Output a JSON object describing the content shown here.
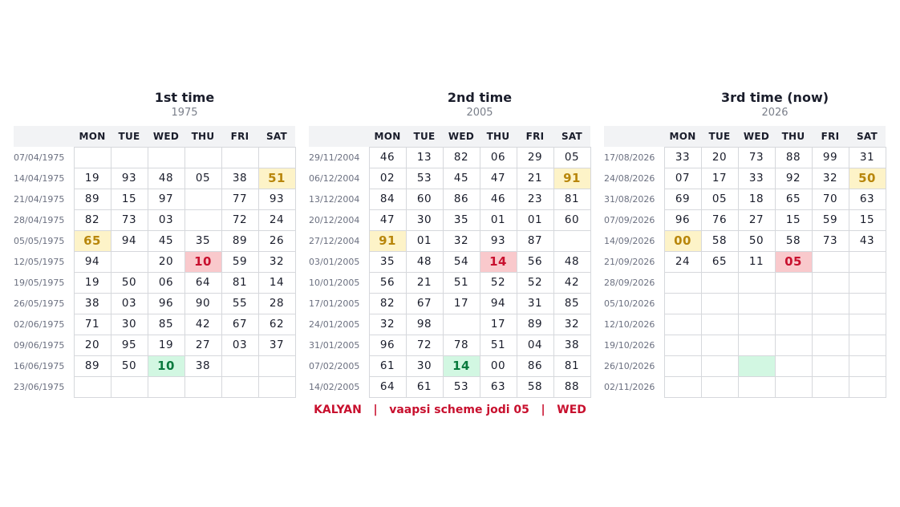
{
  "days": [
    "MON",
    "TUE",
    "WED",
    "THU",
    "FRI",
    "SAT"
  ],
  "panels": [
    {
      "title": "1st time",
      "year": "1975",
      "rows": [
        {
          "date": "07/04/1975",
          "cells": [
            {
              "v": ""
            },
            {
              "v": ""
            },
            {
              "v": ""
            },
            {
              "v": ""
            },
            {
              "v": ""
            },
            {
              "v": ""
            }
          ]
        },
        {
          "date": "14/04/1975",
          "cells": [
            {
              "v": "19"
            },
            {
              "v": "93"
            },
            {
              "v": "48"
            },
            {
              "v": "05"
            },
            {
              "v": "38"
            },
            {
              "v": "51",
              "hl": "yellow"
            }
          ]
        },
        {
          "date": "21/04/1975",
          "cells": [
            {
              "v": "89"
            },
            {
              "v": "15"
            },
            {
              "v": "97"
            },
            {
              "v": ""
            },
            {
              "v": "77"
            },
            {
              "v": "93"
            }
          ]
        },
        {
          "date": "28/04/1975",
          "cells": [
            {
              "v": "82"
            },
            {
              "v": "73"
            },
            {
              "v": "03"
            },
            {
              "v": ""
            },
            {
              "v": "72"
            },
            {
              "v": "24"
            }
          ]
        },
        {
          "date": "05/05/1975",
          "cells": [
            {
              "v": "65",
              "hl": "yellow"
            },
            {
              "v": "94"
            },
            {
              "v": "45"
            },
            {
              "v": "35"
            },
            {
              "v": "89"
            },
            {
              "v": "26"
            }
          ]
        },
        {
          "date": "12/05/1975",
          "cells": [
            {
              "v": "94"
            },
            {
              "v": ""
            },
            {
              "v": "20"
            },
            {
              "v": "10",
              "hl": "red"
            },
            {
              "v": "59"
            },
            {
              "v": "32"
            }
          ]
        },
        {
          "date": "19/05/1975",
          "cells": [
            {
              "v": "19"
            },
            {
              "v": "50"
            },
            {
              "v": "06"
            },
            {
              "v": "64"
            },
            {
              "v": "81"
            },
            {
              "v": "14"
            }
          ]
        },
        {
          "date": "26/05/1975",
          "cells": [
            {
              "v": "38"
            },
            {
              "v": "03"
            },
            {
              "v": "96"
            },
            {
              "v": "90"
            },
            {
              "v": "55"
            },
            {
              "v": "28"
            }
          ]
        },
        {
          "date": "02/06/1975",
          "cells": [
            {
              "v": "71"
            },
            {
              "v": "30"
            },
            {
              "v": "85"
            },
            {
              "v": "42"
            },
            {
              "v": "67"
            },
            {
              "v": "62"
            }
          ]
        },
        {
          "date": "09/06/1975",
          "cells": [
            {
              "v": "20"
            },
            {
              "v": "95"
            },
            {
              "v": "19"
            },
            {
              "v": "27"
            },
            {
              "v": "03"
            },
            {
              "v": "37"
            }
          ]
        },
        {
          "date": "16/06/1975",
          "cells": [
            {
              "v": "89"
            },
            {
              "v": "50"
            },
            {
              "v": "10",
              "hl": "green"
            },
            {
              "v": "38"
            },
            {
              "v": ""
            },
            {
              "v": ""
            }
          ]
        },
        {
          "date": "23/06/1975",
          "cells": [
            {
              "v": ""
            },
            {
              "v": ""
            },
            {
              "v": ""
            },
            {
              "v": ""
            },
            {
              "v": ""
            },
            {
              "v": ""
            }
          ]
        }
      ]
    },
    {
      "title": "2nd time",
      "year": "2005",
      "rows": [
        {
          "date": "29/11/2004",
          "cells": [
            {
              "v": "46"
            },
            {
              "v": "13"
            },
            {
              "v": "82"
            },
            {
              "v": "06"
            },
            {
              "v": "29"
            },
            {
              "v": "05"
            }
          ]
        },
        {
          "date": "06/12/2004",
          "cells": [
            {
              "v": "02"
            },
            {
              "v": "53"
            },
            {
              "v": "45"
            },
            {
              "v": "47"
            },
            {
              "v": "21"
            },
            {
              "v": "91",
              "hl": "yellow"
            }
          ]
        },
        {
          "date": "13/12/2004",
          "cells": [
            {
              "v": "84"
            },
            {
              "v": "60"
            },
            {
              "v": "86"
            },
            {
              "v": "46"
            },
            {
              "v": "23"
            },
            {
              "v": "81"
            }
          ]
        },
        {
          "date": "20/12/2004",
          "cells": [
            {
              "v": "47"
            },
            {
              "v": "30"
            },
            {
              "v": "35"
            },
            {
              "v": "01"
            },
            {
              "v": "01"
            },
            {
              "v": "60"
            }
          ]
        },
        {
          "date": "27/12/2004",
          "cells": [
            {
              "v": "91",
              "hl": "yellow"
            },
            {
              "v": "01"
            },
            {
              "v": "32"
            },
            {
              "v": "93"
            },
            {
              "v": "87"
            },
            {
              "v": ""
            }
          ]
        },
        {
          "date": "03/01/2005",
          "cells": [
            {
              "v": "35"
            },
            {
              "v": "48"
            },
            {
              "v": "54"
            },
            {
              "v": "14",
              "hl": "red"
            },
            {
              "v": "56"
            },
            {
              "v": "48"
            }
          ]
        },
        {
          "date": "10/01/2005",
          "cells": [
            {
              "v": "56"
            },
            {
              "v": "21"
            },
            {
              "v": "51"
            },
            {
              "v": "52"
            },
            {
              "v": "52"
            },
            {
              "v": "42"
            }
          ]
        },
        {
          "date": "17/01/2005",
          "cells": [
            {
              "v": "82"
            },
            {
              "v": "67"
            },
            {
              "v": "17"
            },
            {
              "v": "94"
            },
            {
              "v": "31"
            },
            {
              "v": "85"
            }
          ]
        },
        {
          "date": "24/01/2005",
          "cells": [
            {
              "v": "32"
            },
            {
              "v": "98"
            },
            {
              "v": ""
            },
            {
              "v": "17"
            },
            {
              "v": "89"
            },
            {
              "v": "32"
            }
          ]
        },
        {
          "date": "31/01/2005",
          "cells": [
            {
              "v": "96"
            },
            {
              "v": "72"
            },
            {
              "v": "78"
            },
            {
              "v": "51"
            },
            {
              "v": "04"
            },
            {
              "v": "38"
            }
          ]
        },
        {
          "date": "07/02/2005",
          "cells": [
            {
              "v": "61"
            },
            {
              "v": "30"
            },
            {
              "v": "14",
              "hl": "green"
            },
            {
              "v": "00"
            },
            {
              "v": "86"
            },
            {
              "v": "81"
            }
          ]
        },
        {
          "date": "14/02/2005",
          "cells": [
            {
              "v": "64"
            },
            {
              "v": "61"
            },
            {
              "v": "53"
            },
            {
              "v": "63"
            },
            {
              "v": "58"
            },
            {
              "v": "88"
            }
          ]
        }
      ]
    },
    {
      "title": "3rd time  (now)",
      "year": "2026",
      "rows": [
        {
          "date": "17/08/2026",
          "cells": [
            {
              "v": "33"
            },
            {
              "v": "20"
            },
            {
              "v": "73"
            },
            {
              "v": "88"
            },
            {
              "v": "99"
            },
            {
              "v": "31"
            }
          ]
        },
        {
          "date": "24/08/2026",
          "cells": [
            {
              "v": "07"
            },
            {
              "v": "17"
            },
            {
              "v": "33"
            },
            {
              "v": "92"
            },
            {
              "v": "32"
            },
            {
              "v": "50",
              "hl": "yellow"
            }
          ]
        },
        {
          "date": "31/08/2026",
          "cells": [
            {
              "v": "69"
            },
            {
              "v": "05"
            },
            {
              "v": "18"
            },
            {
              "v": "65"
            },
            {
              "v": "70"
            },
            {
              "v": "63"
            }
          ]
        },
        {
          "date": "07/09/2026",
          "cells": [
            {
              "v": "96"
            },
            {
              "v": "76"
            },
            {
              "v": "27"
            },
            {
              "v": "15"
            },
            {
              "v": "59"
            },
            {
              "v": "15"
            }
          ]
        },
        {
          "date": "14/09/2026",
          "cells": [
            {
              "v": "00",
              "hl": "yellow"
            },
            {
              "v": "58"
            },
            {
              "v": "50"
            },
            {
              "v": "58"
            },
            {
              "v": "73"
            },
            {
              "v": "43"
            }
          ]
        },
        {
          "date": "21/09/2026",
          "cells": [
            {
              "v": "24"
            },
            {
              "v": "65"
            },
            {
              "v": "11"
            },
            {
              "v": "05",
              "hl": "red"
            },
            {
              "v": ""
            },
            {
              "v": ""
            }
          ]
        },
        {
          "date": "28/09/2026",
          "cells": [
            {
              "v": ""
            },
            {
              "v": ""
            },
            {
              "v": ""
            },
            {
              "v": ""
            },
            {
              "v": ""
            },
            {
              "v": ""
            }
          ]
        },
        {
          "date": "05/10/2026",
          "cells": [
            {
              "v": ""
            },
            {
              "v": ""
            },
            {
              "v": ""
            },
            {
              "v": ""
            },
            {
              "v": ""
            },
            {
              "v": ""
            }
          ]
        },
        {
          "date": "12/10/2026",
          "cells": [
            {
              "v": ""
            },
            {
              "v": ""
            },
            {
              "v": ""
            },
            {
              "v": ""
            },
            {
              "v": ""
            },
            {
              "v": ""
            }
          ]
        },
        {
          "date": "19/10/2026",
          "cells": [
            {
              "v": ""
            },
            {
              "v": ""
            },
            {
              "v": ""
            },
            {
              "v": ""
            },
            {
              "v": ""
            },
            {
              "v": ""
            }
          ]
        },
        {
          "date": "26/10/2026",
          "cells": [
            {
              "v": ""
            },
            {
              "v": ""
            },
            {
              "v": "",
              "hl": "green"
            },
            {
              "v": ""
            },
            {
              "v": ""
            },
            {
              "v": ""
            }
          ]
        },
        {
          "date": "02/11/2026",
          "cells": [
            {
              "v": ""
            },
            {
              "v": ""
            },
            {
              "v": ""
            },
            {
              "v": ""
            },
            {
              "v": ""
            },
            {
              "v": ""
            }
          ]
        }
      ]
    }
  ],
  "footer": {
    "market": "KALYAN",
    "separator": "|",
    "scheme": "vaapsi scheme jodi 05",
    "day": "WED"
  },
  "colors": {
    "highlight_yellow": "#fdf3c8",
    "highlight_red": "#f9c9cc",
    "highlight_green": "#d2f7e2",
    "accent_red": "#c8102e"
  }
}
